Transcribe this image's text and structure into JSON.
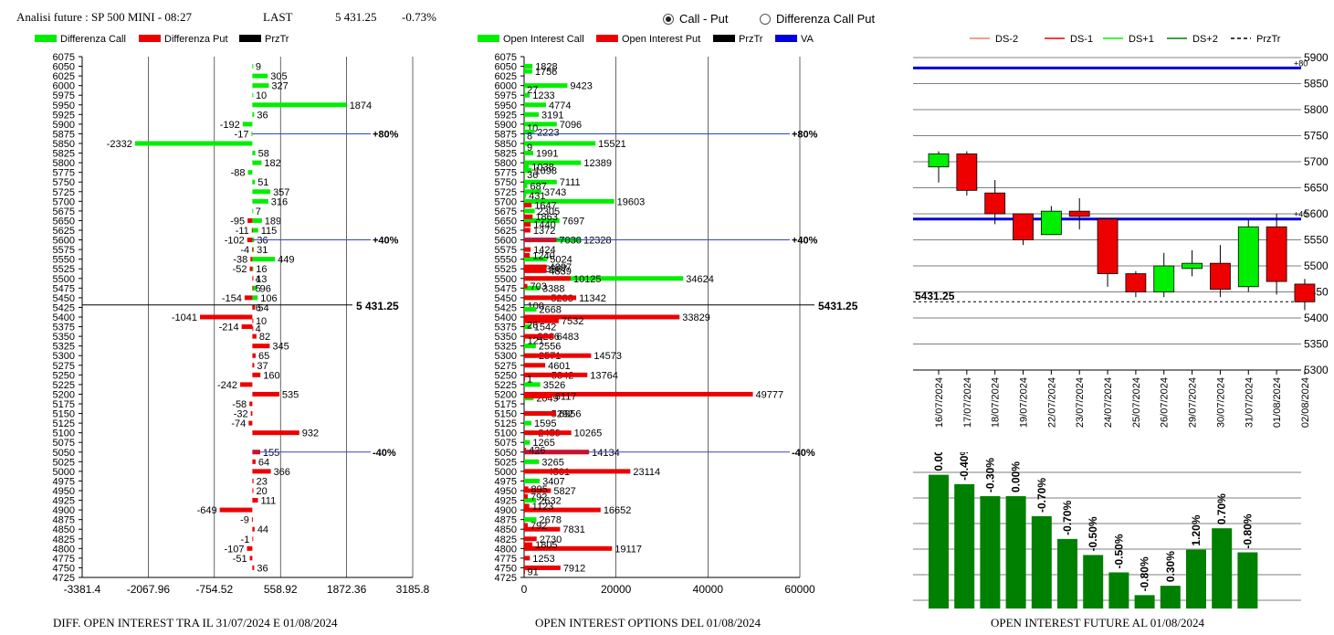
{
  "header": {
    "title": "Analisi future : SP 500 MINI - 08:27",
    "last_label": "LAST",
    "last_value": "5 431.25",
    "change": "-0.73%"
  },
  "controls": {
    "radio_call_put": "Call - Put",
    "radio_diff": "Differenza Call Put",
    "selected": "call_put"
  },
  "footers": {
    "left": "DIFF. OPEN INTEREST TRA IL 31/07/2024 E 01/08/2024",
    "middle": "OPEN INTEREST OPTIONS DEL 01/08/2024",
    "right": "OPEN INTEREST FUTURE AL 01/08/2024"
  },
  "colors": {
    "green": "#00ee00",
    "red": "#ee0000",
    "black": "#000000",
    "blue": "#0000dd",
    "darkgreen": "#008000"
  },
  "chart_data": [
    {
      "id": "diff",
      "type": "bar",
      "orientation": "horizontal",
      "legend": [
        "Differenza Call",
        "Differenza Put",
        "PrzTr"
      ],
      "strikes": [
        6075,
        6050,
        6025,
        6000,
        5975,
        5950,
        5925,
        5900,
        5875,
        5850,
        5825,
        5800,
        5775,
        5750,
        5725,
        5700,
        5675,
        5650,
        5625,
        5600,
        5575,
        5550,
        5525,
        5500,
        5475,
        5450,
        5425,
        5400,
        5375,
        5350,
        5325,
        5300,
        5275,
        5250,
        5225,
        5200,
        5175,
        5150,
        5125,
        5100,
        5075,
        5050,
        5025,
        5000,
        4975,
        4950,
        4925,
        4900,
        4875,
        4850,
        4825,
        4800,
        4775,
        4750,
        4725
      ],
      "xticks": [
        "-3381.4",
        "-2067.96",
        "-754.52",
        "558.92",
        "1872.36",
        "3185.8"
      ],
      "xrange": [
        -3381.4,
        3185.8
      ],
      "ymax": 6075,
      "ymin": 4725,
      "call": [
        {
          "s": 6050,
          "v": 9
        },
        {
          "s": 6025,
          "v": 305
        },
        {
          "s": 6000,
          "v": 327
        },
        {
          "s": 5975,
          "v": 10
        },
        {
          "s": 5950,
          "v": 1874
        },
        {
          "s": 5925,
          "v": 36
        },
        {
          "s": 5900,
          "v": -192
        },
        {
          "s": 5875,
          "v": -17
        },
        {
          "s": 5850,
          "v": -2332
        },
        {
          "s": 5825,
          "v": 58
        },
        {
          "s": 5800,
          "v": 182
        },
        {
          "s": 5775,
          "v": -88
        },
        {
          "s": 5750,
          "v": 51
        },
        {
          "s": 5725,
          "v": 357
        },
        {
          "s": 5700,
          "v": 316
        },
        {
          "s": 5675,
          "v": 7
        },
        {
          "s": 5650,
          "v": 189
        },
        {
          "s": 5625,
          "v": 115
        },
        {
          "s": 5600,
          "v": 36
        },
        {
          "s": 5575,
          "v": 31
        },
        {
          "s": 5550,
          "v": 449
        },
        {
          "s": 5525,
          "v": 16
        },
        {
          "s": 5500,
          "v": 13
        },
        {
          "s": 5475,
          "v": 96
        },
        {
          "s": 5450,
          "v": 106
        },
        {
          "s": 5425,
          "v": 6
        }
      ],
      "put": [
        {
          "s": 5650,
          "v": -95
        },
        {
          "s": 5625,
          "v": -11
        },
        {
          "s": 5600,
          "v": -102
        },
        {
          "s": 5575,
          "v": -4
        },
        {
          "s": 5550,
          "v": -38
        },
        {
          "s": 5525,
          "v": -52
        },
        {
          "s": 5500,
          "v": 4
        },
        {
          "s": 5475,
          "v": 5
        },
        {
          "s": 5450,
          "v": -154
        },
        {
          "s": 5425,
          "v": 54
        },
        {
          "s": 5400,
          "v": -1041
        },
        {
          "s": 5390,
          "v": 10
        },
        {
          "s": 5375,
          "v": -214
        },
        {
          "s": 5370,
          "v": 4
        },
        {
          "s": 5350,
          "v": 82
        },
        {
          "s": 5325,
          "v": 345
        },
        {
          "s": 5300,
          "v": 65
        },
        {
          "s": 5275,
          "v": 37
        },
        {
          "s": 5250,
          "v": 160
        },
        {
          "s": 5225,
          "v": -242
        },
        {
          "s": 5200,
          "v": 535
        },
        {
          "s": 5175,
          "v": -58
        },
        {
          "s": 5150,
          "v": -32
        },
        {
          "s": 5125,
          "v": -74
        },
        {
          "s": 5100,
          "v": 932
        },
        {
          "s": 5050,
          "v": 155
        },
        {
          "s": 5025,
          "v": 64
        },
        {
          "s": 5000,
          "v": 366
        },
        {
          "s": 4975,
          "v": 23
        },
        {
          "s": 4950,
          "v": 20
        },
        {
          "s": 4925,
          "v": 111
        },
        {
          "s": 4900,
          "v": -649
        },
        {
          "s": 4875,
          "v": -9
        },
        {
          "s": 4850,
          "v": 44
        },
        {
          "s": 4825,
          "v": -1
        },
        {
          "s": 4800,
          "v": -107
        },
        {
          "s": 4775,
          "v": -51
        },
        {
          "s": 4750,
          "v": 36
        }
      ],
      "price_line": {
        "value": 5431.25,
        "label": "5 431.25"
      },
      "bands": [
        {
          "value": 5875,
          "label": "+80%"
        },
        {
          "value": 5600,
          "label": "+40%"
        },
        {
          "value": 5050,
          "label": "-40%"
        }
      ]
    },
    {
      "id": "oi",
      "type": "bar",
      "orientation": "horizontal",
      "legend": [
        "Open Interest Call",
        "Open Interest Put",
        "PrzTr",
        "VA"
      ],
      "strikes": [
        6075,
        6050,
        6025,
        6000,
        5975,
        5950,
        5925,
        5900,
        5875,
        5850,
        5825,
        5800,
        5775,
        5750,
        5725,
        5700,
        5675,
        5650,
        5625,
        5600,
        5575,
        5550,
        5525,
        5500,
        5475,
        5450,
        5425,
        5400,
        5375,
        5350,
        5325,
        5300,
        5275,
        5250,
        5225,
        5200,
        5175,
        5150,
        5125,
        5100,
        5075,
        5050,
        5025,
        5000,
        4975,
        4950,
        4925,
        4900,
        4875,
        4850,
        4825,
        4800,
        4775,
        4750,
        4725
      ],
      "xticks": [
        "0",
        "20000",
        "40000",
        "60000"
      ],
      "xrange": [
        0,
        60000
      ],
      "ymax": 6075,
      "ymin": 4725,
      "call": [
        {
          "s": 6050,
          "v": 1828
        },
        {
          "s": 6037,
          "v": 1756
        },
        {
          "s": 6000,
          "v": 9423
        },
        {
          "s": 5990,
          "v": 27
        },
        {
          "s": 5975,
          "v": 1233
        },
        {
          "s": 5950,
          "v": 4774
        },
        {
          "s": 5925,
          "v": 3191
        },
        {
          "s": 5900,
          "v": 7096
        },
        {
          "s": 5890,
          "v": 10
        },
        {
          "s": 5880,
          "v": 2223
        },
        {
          "s": 5870,
          "v": 8
        },
        {
          "s": 5850,
          "v": 15521
        },
        {
          "s": 5840,
          "v": 9
        },
        {
          "s": 5825,
          "v": 1991
        },
        {
          "s": 5800,
          "v": 12389
        },
        {
          "s": 5790,
          "v": 1038
        },
        {
          "s": 5780,
          "v": 1698
        },
        {
          "s": 5770,
          "v": 36
        },
        {
          "s": 5750,
          "v": 7111
        },
        {
          "s": 5740,
          "v": 687
        },
        {
          "s": 5725,
          "v": 3743
        },
        {
          "s": 5715,
          "v": 431
        },
        {
          "s": 5700,
          "v": 19603
        },
        {
          "s": 5675,
          "v": 2305
        },
        {
          "s": 5650,
          "v": 7697
        },
        {
          "s": 5600,
          "v": 12328
        },
        {
          "s": 5550,
          "v": 5024
        },
        {
          "s": 5525,
          "v": 3987
        },
        {
          "s": 5500,
          "v": 34624
        },
        {
          "s": 5475,
          "v": 3388
        },
        {
          "s": 5450,
          "v": 5238
        },
        {
          "s": 5430,
          "v": 100
        },
        {
          "s": 5420,
          "v": 2668
        },
        {
          "s": 5375,
          "v": 1542
        },
        {
          "s": 5350,
          "v": 2266
        },
        {
          "s": 5325,
          "v": 2556
        },
        {
          "s": 5300,
          "v": 2571
        },
        {
          "s": 5250,
          "v": 5342
        },
        {
          "s": 5225,
          "v": 3526
        },
        {
          "s": 5190,
          "v": 2049
        },
        {
          "s": 5150,
          "v": 5292
        },
        {
          "s": 5125,
          "v": 1595
        },
        {
          "s": 5100,
          "v": 2459
        },
        {
          "s": 5075,
          "v": 1265
        },
        {
          "s": 5025,
          "v": 3265
        },
        {
          "s": 5000,
          "v": 4501
        },
        {
          "s": 4975,
          "v": 3407
        },
        {
          "s": 4925,
          "v": 2632
        },
        {
          "s": 4875,
          "v": 2678
        }
      ],
      "put": [
        {
          "s": 5690,
          "v": 1647
        },
        {
          "s": 5660,
          "v": 1863
        },
        {
          "s": 5640,
          "v": 1440
        },
        {
          "s": 5625,
          "v": 1372
        },
        {
          "s": 5600,
          "v": 7030
        },
        {
          "s": 5575,
          "v": 1424
        },
        {
          "s": 5560,
          "v": 1240
        },
        {
          "s": 5530,
          "v": 4897
        },
        {
          "s": 5520,
          "v": 4839
        },
        {
          "s": 5500,
          "v": 10125
        },
        {
          "s": 5480,
          "v": 703
        },
        {
          "s": 5450,
          "v": 11342
        },
        {
          "s": 5400,
          "v": 33829
        },
        {
          "s": 5390,
          "v": 7532
        },
        {
          "s": 5380,
          "v": 26
        },
        {
          "s": 5350,
          "v": 6483
        },
        {
          "s": 5340,
          "v": 121
        },
        {
          "s": 5300,
          "v": 14573
        },
        {
          "s": 5275,
          "v": 4601
        },
        {
          "s": 5250,
          "v": 13764
        },
        {
          "s": 5240,
          "v": 1
        },
        {
          "s": 5200,
          "v": 49777
        },
        {
          "s": 5195,
          "v": 6117
        },
        {
          "s": 5150,
          "v": 6956
        },
        {
          "s": 5100,
          "v": 10265
        },
        {
          "s": 5050,
          "v": 14134
        },
        {
          "s": 5055,
          "v": 426
        },
        {
          "s": 5000,
          "v": 23114
        },
        {
          "s": 4950,
          "v": 5827
        },
        {
          "s": 4955,
          "v": 895
        },
        {
          "s": 4935,
          "v": 792
        },
        {
          "s": 4900,
          "v": 16652
        },
        {
          "s": 4910,
          "v": 1123
        },
        {
          "s": 4850,
          "v": 7831
        },
        {
          "s": 4860,
          "v": 792
        },
        {
          "s": 4825,
          "v": 2730
        },
        {
          "s": 4800,
          "v": 19117
        },
        {
          "s": 4810,
          "v": 1805
        },
        {
          "s": 4775,
          "v": 1253
        },
        {
          "s": 4750,
          "v": 7912
        },
        {
          "s": 4740,
          "v": 91
        }
      ],
      "price_line": {
        "value": 5431.25,
        "label": "5431.25"
      },
      "bands": [
        {
          "value": 5875,
          "label": "+80%"
        },
        {
          "value": 5600,
          "label": "+40%"
        },
        {
          "value": 5050,
          "label": "-40%"
        }
      ]
    },
    {
      "id": "candles",
      "type": "candlestick",
      "legend": [
        "DS-2",
        "DS-1",
        "DS+1",
        "DS+2",
        "PrzTr"
      ],
      "dates": [
        "16/07/2024",
        "17/07/2024",
        "18/07/2024",
        "19/07/2024",
        "22/07/2024",
        "23/07/2024",
        "24/07/2024",
        "25/07/2024",
        "26/07/2024",
        "29/07/2024",
        "30/07/2024",
        "31/07/2024",
        "01/08/2024",
        "02/08/2024"
      ],
      "ohlc": [
        [
          5690,
          5720,
          5660,
          5715
        ],
        [
          5715,
          5720,
          5635,
          5645
        ],
        [
          5640,
          5665,
          5580,
          5600
        ],
        [
          5600,
          5600,
          5540,
          5550
        ],
        [
          5560,
          5615,
          5560,
          5605
        ],
        [
          5605,
          5630,
          5570,
          5595
        ],
        [
          5590,
          5590,
          5460,
          5485
        ],
        [
          5485,
          5490,
          5440,
          5450
        ],
        [
          5450,
          5525,
          5440,
          5500
        ],
        [
          5495,
          5530,
          5480,
          5505
        ],
        [
          5505,
          5540,
          5440,
          5455
        ],
        [
          5460,
          5590,
          5450,
          5575
        ],
        [
          5575,
          5600,
          5445,
          5470
        ],
        [
          5465,
          5475,
          5415,
          5431
        ]
      ],
      "yticks": [
        "5900",
        "5850",
        "5800",
        "5750",
        "5700",
        "5650",
        "5600",
        "5550",
        "5500",
        "5450",
        "5400",
        "5350",
        "5300"
      ],
      "yrange": [
        5300,
        5900
      ],
      "hlines": [
        {
          "value": 5880,
          "label": "+80"
        },
        {
          "value": 5590,
          "label": "+40"
        }
      ],
      "price_line": {
        "value": 5431.25,
        "label": "5431.25"
      }
    },
    {
      "id": "oi_future",
      "type": "bar",
      "labels": [
        "0.00%",
        "-0.40%",
        "-0.30%",
        "0.00%",
        "-0.70%",
        "-0.70%",
        "-0.50%",
        "-0.50%",
        "-0.80%",
        "0.30%",
        "1.20%",
        "0.70%",
        "-0.80%"
      ],
      "values": [
        100,
        93,
        84,
        84,
        69,
        52,
        40,
        27,
        10,
        17,
        44,
        60,
        42
      ],
      "yrange": [
        0,
        110
      ]
    }
  ]
}
